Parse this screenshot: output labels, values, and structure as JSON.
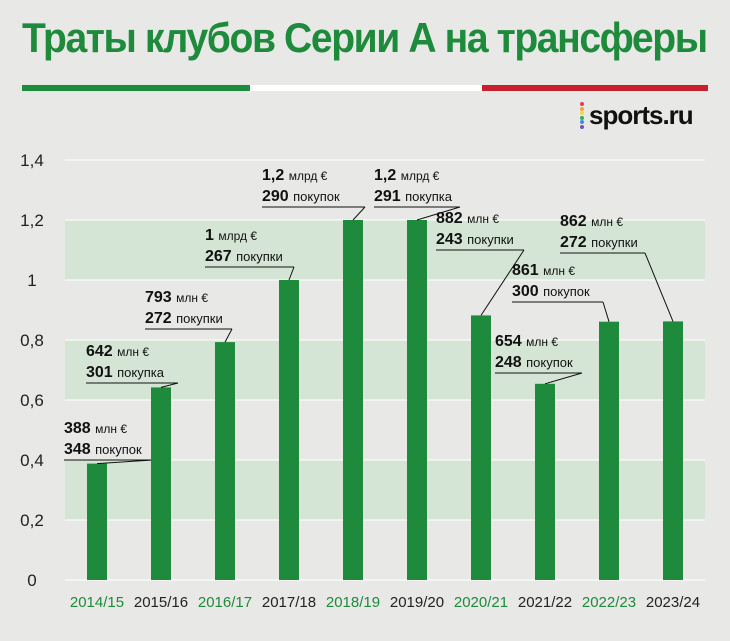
{
  "title": "Траты клубов Серии А на трансферы",
  "logo": {
    "text": "sports.ru",
    "dot_colors": [
      "#e73c4f",
      "#f7a62c",
      "#f4d64c",
      "#34b04e",
      "#3a8ee8",
      "#7b4fc4"
    ]
  },
  "colors": {
    "bar": "#1e8a3c",
    "band": "#d5e5d5",
    "bg": "#e8e8e6",
    "accent_label": "#1e8a3c",
    "flag_green": "#1e8a3c",
    "flag_white": "#ffffff",
    "flag_red": "#c8202f"
  },
  "chart_data": {
    "type": "bar",
    "title": "Траты клубов Серии А на трансферы",
    "xlabel": "",
    "ylabel": "",
    "ylim": [
      0,
      1.4
    ],
    "yticks": [
      0,
      0.2,
      0.4,
      0.6,
      0.8,
      1,
      1.2,
      1.4
    ],
    "ytick_labels": [
      "0",
      "0,2",
      "0,4",
      "0,6",
      "0,8",
      "1",
      "1,2",
      "1,4"
    ],
    "categories": [
      "2014/15",
      "2015/16",
      "2016/17",
      "2017/18",
      "2018/19",
      "2019/20",
      "2020/21",
      "2021/22",
      "2022/23",
      "2023/24"
    ],
    "category_highlight": [
      true,
      false,
      true,
      false,
      true,
      false,
      true,
      false,
      true,
      false
    ],
    "values": [
      0.388,
      0.642,
      0.793,
      1.0,
      1.2,
      1.2,
      0.882,
      0.654,
      0.861,
      0.862
    ],
    "annotations": [
      {
        "amount": "388",
        "unit": "млн €",
        "purchases": "348",
        "purchases_word": "покупок"
      },
      {
        "amount": "642",
        "unit": "млн €",
        "purchases": "301",
        "purchases_word": "покупка"
      },
      {
        "amount": "793",
        "unit": "млн €",
        "purchases": "272",
        "purchases_word": "покупки"
      },
      {
        "amount": "1",
        "unit": "млрд €",
        "purchases": "267",
        "purchases_word": "покупки"
      },
      {
        "amount": "1,2",
        "unit": "млрд €",
        "purchases": "290",
        "purchases_word": "покупок"
      },
      {
        "amount": "1,2",
        "unit": "млрд €",
        "purchases": "291",
        "purchases_word": "покупка"
      },
      {
        "amount": "882",
        "unit": "млн €",
        "purchases": "243",
        "purchases_word": "покупки"
      },
      {
        "amount": "654",
        "unit": "млн €",
        "purchases": "248",
        "purchases_word": "покупок"
      },
      {
        "amount": "861",
        "unit": "млн €",
        "purchases": "300",
        "purchases_word": "покупок"
      },
      {
        "amount": "862",
        "unit": "млн €",
        "purchases": "272",
        "purchases_word": "покупки"
      }
    ]
  }
}
